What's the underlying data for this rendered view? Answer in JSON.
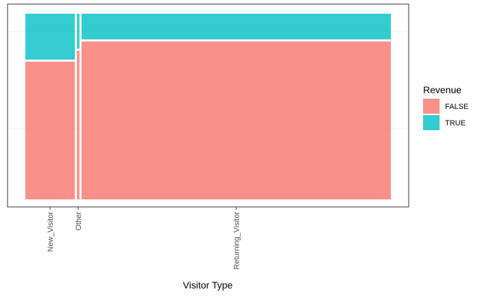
{
  "chart_data": {
    "type": "mosaic",
    "title": "",
    "xlabel": "Visitor Type",
    "ylabel": "",
    "categories": [
      "New_Visitor",
      "Other",
      "Returning_Visitor"
    ],
    "category_share": [
      0.137,
      0.007,
      0.856
    ],
    "series": [
      {
        "name": "FALSE",
        "color": "#F8766D",
        "values": [
          0.75,
          0.81,
          0.86
        ]
      },
      {
        "name": "TRUE",
        "color": "#00BFC4",
        "values": [
          0.25,
          0.19,
          0.14
        ]
      }
    ],
    "legend": {
      "title": "Revenue",
      "position": "right",
      "labels": [
        "FALSE",
        "TRUE"
      ]
    },
    "grid": true,
    "x_tick_rotation": "vertical"
  }
}
